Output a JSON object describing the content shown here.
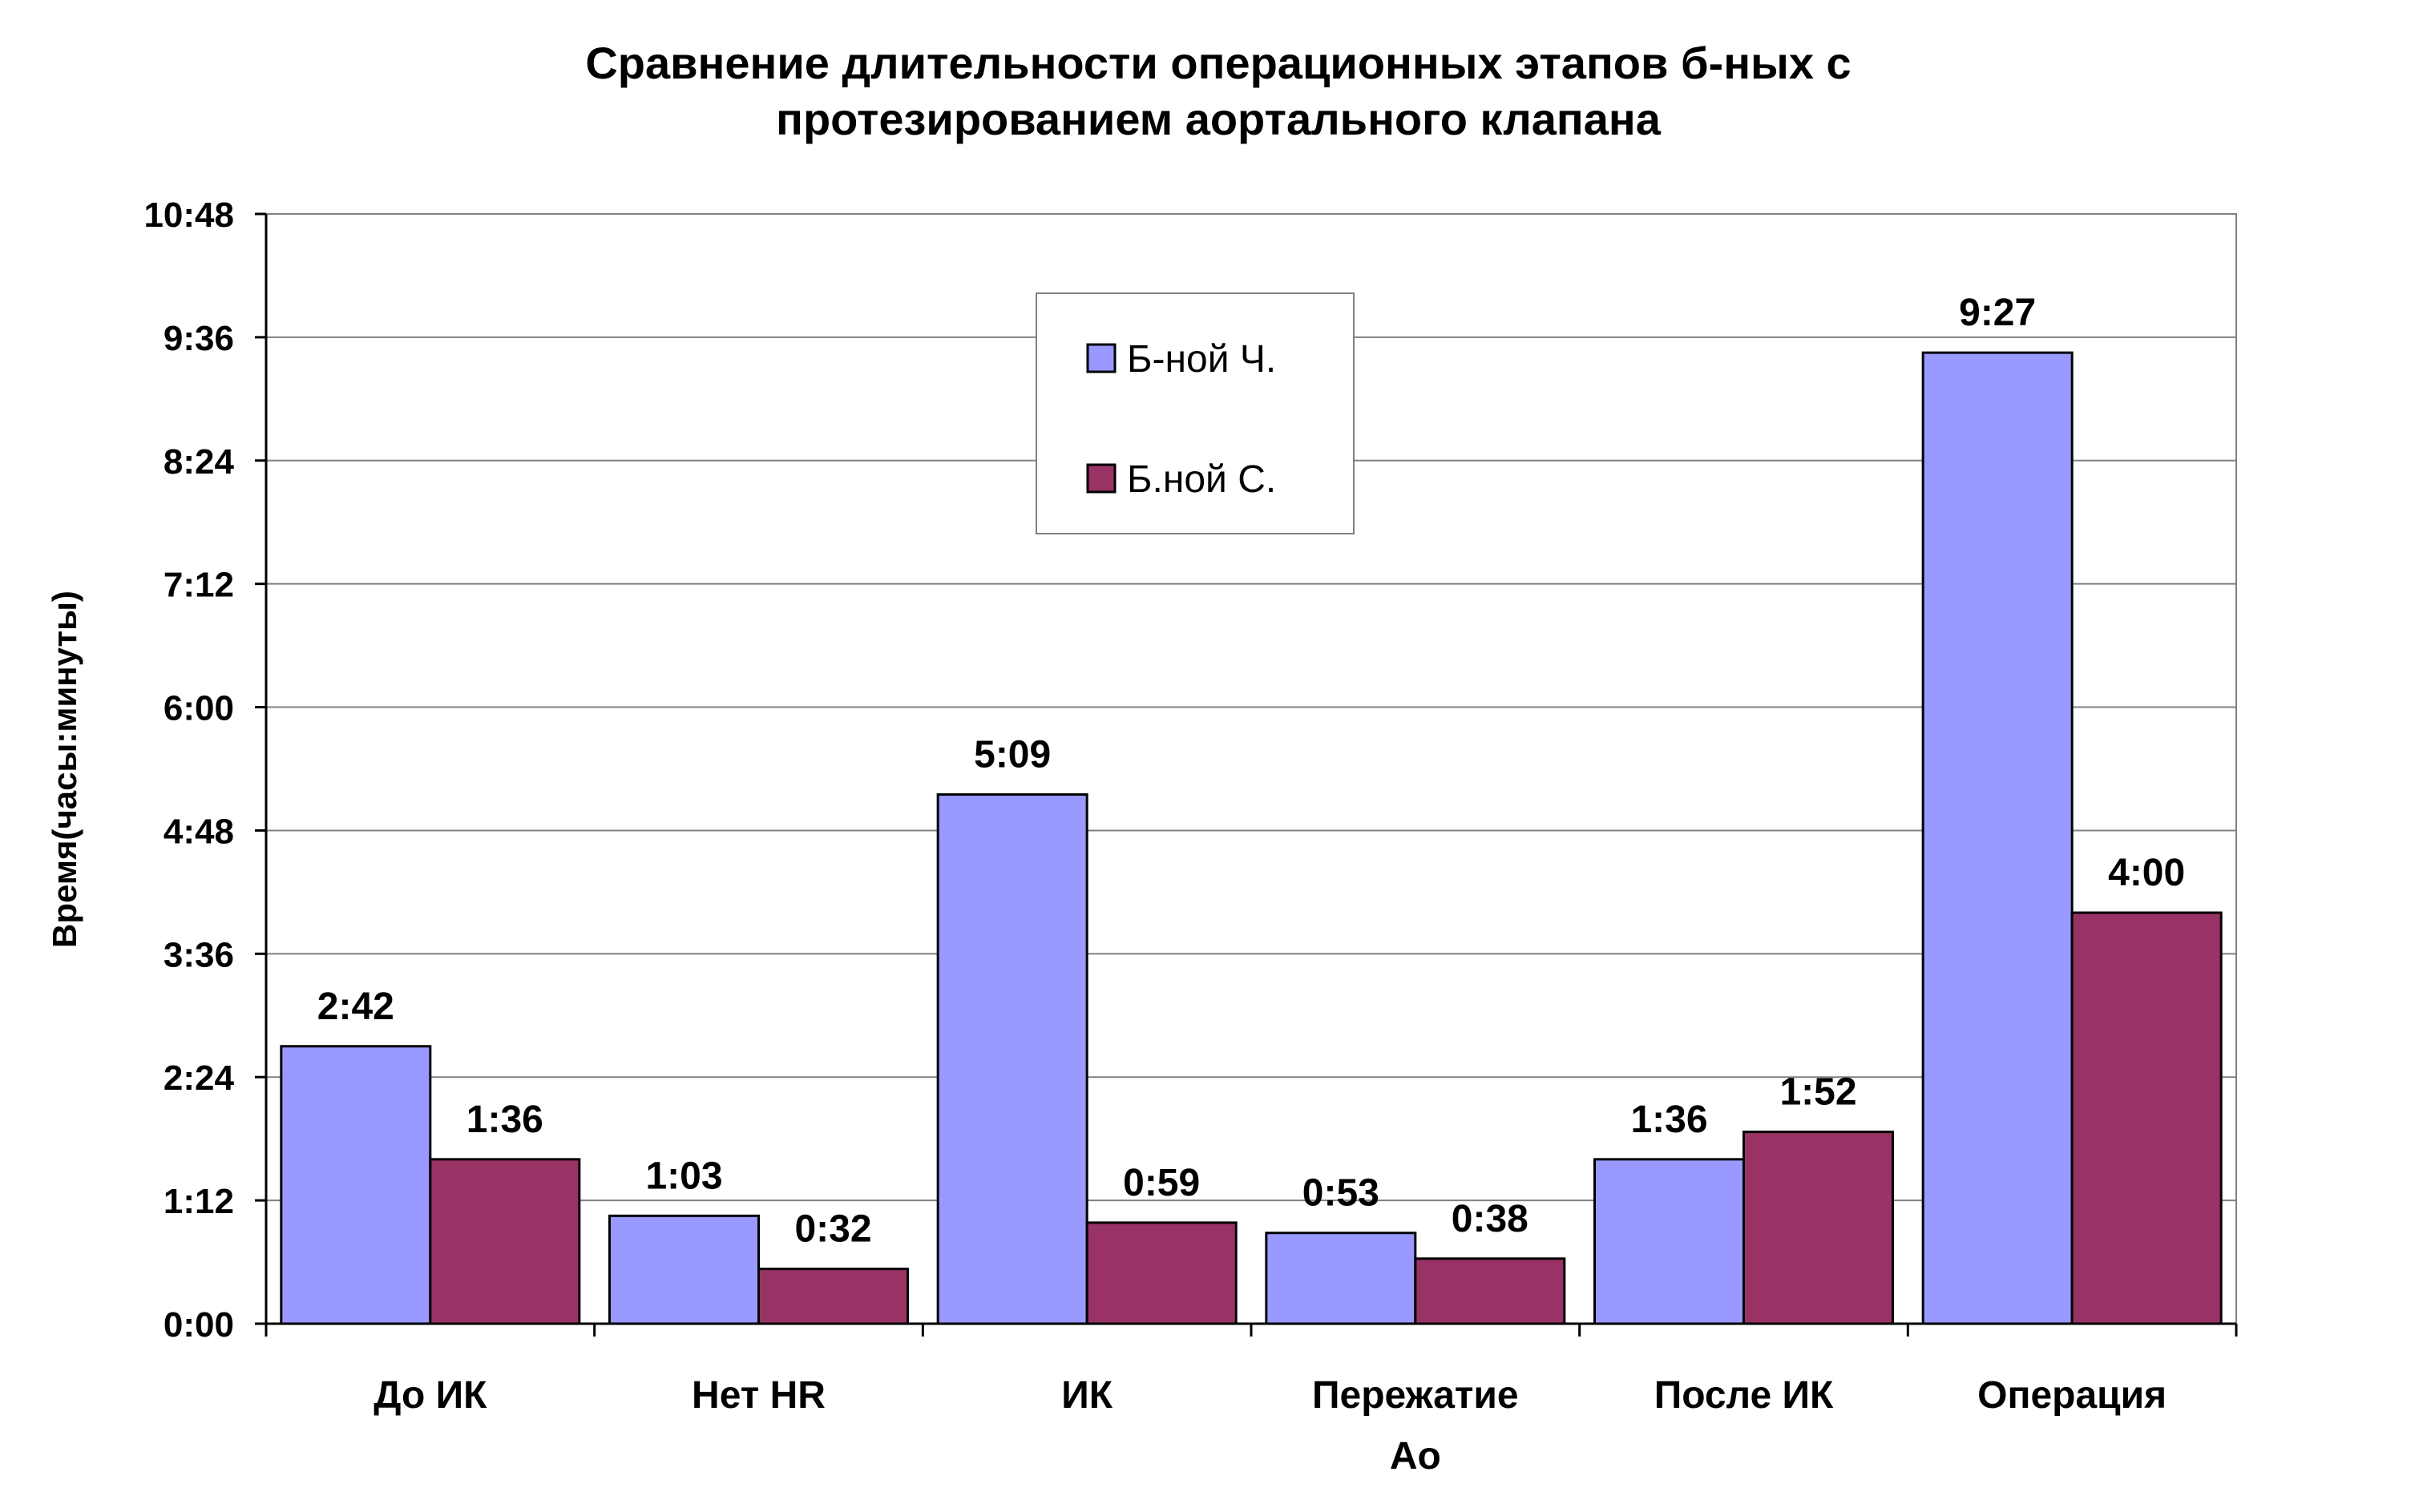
{
  "chart_data": {
    "type": "bar",
    "title": [
      "Сравнение длительности операционных этапов б-ных с",
      "протезированием аортального клапана"
    ],
    "ylabel": "Время(часы:минуты)",
    "xlabel": "",
    "categories": [
      [
        "До ИК"
      ],
      [
        "Нет HR"
      ],
      [
        "ИК"
      ],
      [
        "Пережатие",
        "Ао"
      ],
      [
        "После ИК"
      ],
      [
        "Операция"
      ]
    ],
    "ylim_minutes": [
      0,
      648
    ],
    "y_tick_minutes": [
      0,
      72,
      144,
      216,
      288,
      360,
      432,
      504,
      576,
      648
    ],
    "y_tick_labels": [
      "0:00",
      "1:12",
      "2:24",
      "3:36",
      "4:48",
      "6:00",
      "7:12",
      "8:24",
      "9:36",
      "10:48"
    ],
    "grid": true,
    "legend_position": "top-center",
    "series": [
      {
        "name": "Б-ной Ч.",
        "color": "#9999ff",
        "values_minutes": [
          162,
          63,
          309,
          53,
          96,
          567
        ],
        "labels": [
          "2:42",
          "1:03",
          "5:09",
          "0:53",
          "1:36",
          "9:27"
        ]
      },
      {
        "name": "Б.ной С.",
        "color": "#993366",
        "values_minutes": [
          96,
          32,
          59,
          38,
          112,
          240
        ],
        "labels": [
          "1:36",
          "0:32",
          "0:59",
          "0:38",
          "1:52",
          "4:00"
        ]
      }
    ]
  }
}
